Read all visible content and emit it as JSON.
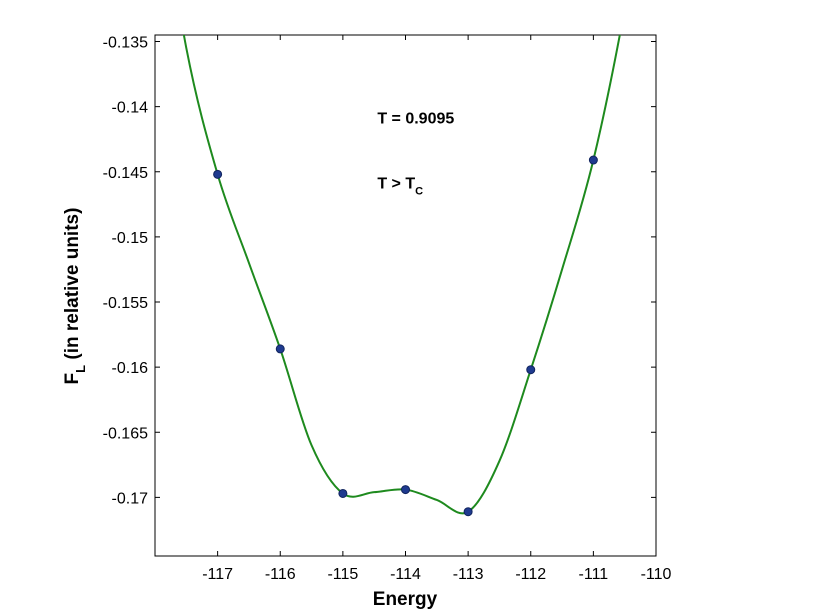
{
  "chart_data": {
    "type": "line",
    "xlabel": "Energy",
    "ylabel_main": "F",
    "ylabel_sub": "L",
    "ylabel_rest": " (in relative units)",
    "xlim": [
      -118,
      -110
    ],
    "ylim": [
      -0.1745,
      -0.1345
    ],
    "x_ticks": [
      -117,
      -116,
      -115,
      -114,
      -113,
      -112,
      -111,
      -110
    ],
    "x_tick_labels": [
      "-117",
      "-116",
      "-115",
      "-114",
      "-113",
      "-112",
      "-111",
      "-110"
    ],
    "y_ticks": [
      -0.135,
      -0.14,
      -0.145,
      -0.15,
      -0.155,
      -0.16,
      -0.165,
      -0.17
    ],
    "y_tick_labels": [
      "-0.135",
      "-0.14",
      "-0.145",
      "-0.15",
      "-0.155",
      "-0.16",
      "-0.165",
      "-0.17"
    ],
    "grid": false,
    "series": [
      {
        "kind": "points",
        "x": [
          -117,
          -116,
          -115,
          -114,
          -113,
          -112,
          -111
        ],
        "y": [
          -0.1452,
          -0.1586,
          -0.1697,
          -0.1694,
          -0.1711,
          -0.1602,
          -0.1441
        ],
        "color": "#1f3a8f"
      },
      {
        "kind": "curve",
        "x": [
          -118,
          -117.5,
          -117,
          -116.5,
          -116,
          -115.5,
          -115,
          -114.5,
          -114,
          -113.5,
          -113,
          -112.5,
          -112,
          -111.5,
          -111,
          -110.5,
          -110
        ],
        "y": [
          -0.1205,
          -0.1355,
          -0.1452,
          -0.152,
          -0.1586,
          -0.166,
          -0.1697,
          -0.1696,
          -0.1694,
          -0.1702,
          -0.1711,
          -0.1672,
          -0.1602,
          -0.1525,
          -0.1441,
          -0.1325,
          -0.118
        ],
        "color": "#1e8a1e"
      }
    ],
    "annotations": [
      {
        "text": "T = 0.9095",
        "x": -114.45,
        "y": -0.1413
      },
      {
        "main": "T > T",
        "sub": "C",
        "x": -114.45,
        "y": -0.1463
      }
    ]
  }
}
